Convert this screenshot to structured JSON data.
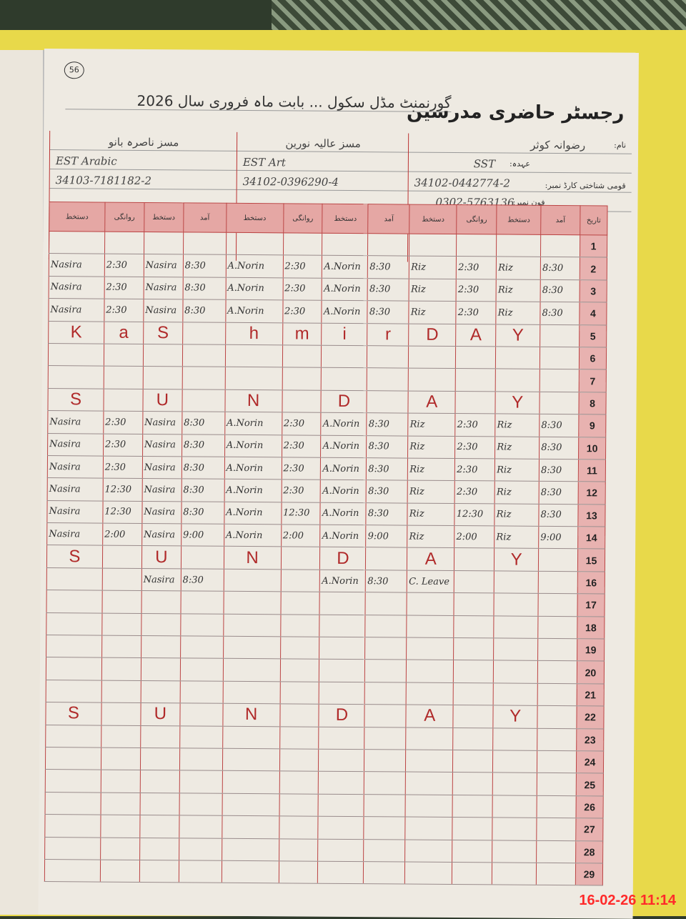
{
  "page_number": "56",
  "title": "رجسٹر حاضری مدرسین",
  "subtitle": "گورنمنٹ مڈل سکول ... بابت ماہ فروری سال 2026",
  "labels": {
    "name": "نام:",
    "designation": "عہدہ:",
    "cnic": "قومی شناختی کارڈ نمبر:",
    "phone": "فون نمبر:"
  },
  "teachers": [
    {
      "name": "مسز ناصرہ بانو",
      "designation": "EST Arabic",
      "cnic": "34103-7181182-2",
      "phone": ""
    },
    {
      "name": "مسز عالیہ نورین",
      "designation": "EST Art",
      "cnic": "34102-0396290-4",
      "phone": ""
    },
    {
      "name": "رضوانہ کوثر",
      "designation": "SST",
      "cnic": "34102-0442774-2",
      "phone": "0302-5763136"
    }
  ],
  "columns": [
    "دستخط",
    "روانگی",
    "دستخط",
    "آمد",
    "دستخط",
    "روانگی",
    "دستخط",
    "آمد",
    "دستخط",
    "روانگی",
    "دستخط",
    "آمد",
    "تاریخ"
  ],
  "rows": [
    {
      "date": "1",
      "cells": [
        "",
        "",
        "",
        "",
        "",
        "",
        "",
        "",
        "",
        "",
        "",
        ""
      ]
    },
    {
      "date": "2",
      "cells": [
        "Nasira",
        "2:30",
        "Nasira",
        "8:30",
        "A.Norin",
        "2:30",
        "A.Norin",
        "8:30",
        "Riz",
        "2:30",
        "Riz",
        "8:30"
      ]
    },
    {
      "date": "3",
      "cells": [
        "Nasira",
        "2:30",
        "Nasira",
        "8:30",
        "A.Norin",
        "2:30",
        "A.Norin",
        "8:30",
        "Riz",
        "2:30",
        "Riz",
        "8:30"
      ]
    },
    {
      "date": "4",
      "cells": [
        "Nasira",
        "2:30",
        "Nasira",
        "8:30",
        "A.Norin",
        "2:30",
        "A.Norin",
        "8:30",
        "Riz",
        "2:30",
        "Riz",
        "8:30"
      ]
    },
    {
      "date": "5",
      "letters": true,
      "cells": [
        "K",
        "a",
        "S",
        "",
        "h",
        "m",
        "i",
        "r",
        "D",
        "A",
        "Y",
        ""
      ]
    },
    {
      "date": "6",
      "cells": [
        "",
        "",
        "",
        "",
        "",
        "",
        "",
        "",
        "",
        "",
        "",
        ""
      ]
    },
    {
      "date": "7",
      "cells": [
        "",
        "",
        "",
        "",
        "",
        "",
        "",
        "",
        "",
        "",
        "",
        ""
      ]
    },
    {
      "date": "8",
      "letters": true,
      "cells": [
        "S",
        "",
        "U",
        "",
        "N",
        "",
        "D",
        "",
        "A",
        "",
        "Y",
        ""
      ]
    },
    {
      "date": "9",
      "cells": [
        "Nasira",
        "2:30",
        "Nasira",
        "8:30",
        "A.Norin",
        "2:30",
        "A.Norin",
        "8:30",
        "Riz",
        "2:30",
        "Riz",
        "8:30"
      ]
    },
    {
      "date": "10",
      "cells": [
        "Nasira",
        "2:30",
        "Nasira",
        "8:30",
        "A.Norin",
        "2:30",
        "A.Norin",
        "8:30",
        "Riz",
        "2:30",
        "Riz",
        "8:30"
      ]
    },
    {
      "date": "11",
      "cells": [
        "Nasira",
        "2:30",
        "Nasira",
        "8:30",
        "A.Norin",
        "2:30",
        "A.Norin",
        "8:30",
        "Riz",
        "2:30",
        "Riz",
        "8:30"
      ]
    },
    {
      "date": "12",
      "cells": [
        "Nasira",
        "12:30",
        "Nasira",
        "8:30",
        "A.Norin",
        "2:30",
        "A.Norin",
        "8:30",
        "Riz",
        "2:30",
        "Riz",
        "8:30"
      ]
    },
    {
      "date": "13",
      "cells": [
        "Nasira",
        "12:30",
        "Nasira",
        "8:30",
        "A.Norin",
        "12:30",
        "A.Norin",
        "8:30",
        "Riz",
        "12:30",
        "Riz",
        "8:30"
      ]
    },
    {
      "date": "14",
      "cells": [
        "Nasira",
        "2:00",
        "Nasira",
        "9:00",
        "A.Norin",
        "2:00",
        "A.Norin",
        "9:00",
        "Riz",
        "2:00",
        "Riz",
        "9:00"
      ]
    },
    {
      "date": "15",
      "letters": true,
      "cells": [
        "S",
        "",
        "U",
        "",
        "N",
        "",
        "D",
        "",
        "A",
        "",
        "Y",
        ""
      ]
    },
    {
      "date": "16",
      "cells": [
        "",
        "",
        "Nasira",
        "8:30",
        "",
        "",
        "A.Norin",
        "8:30",
        "C. Leave",
        "",
        "",
        ""
      ]
    },
    {
      "date": "17",
      "cells": [
        "",
        "",
        "",
        "",
        "",
        "",
        "",
        "",
        "",
        "",
        "",
        ""
      ]
    },
    {
      "date": "18",
      "cells": [
        "",
        "",
        "",
        "",
        "",
        "",
        "",
        "",
        "",
        "",
        "",
        ""
      ]
    },
    {
      "date": "19",
      "cells": [
        "",
        "",
        "",
        "",
        "",
        "",
        "",
        "",
        "",
        "",
        "",
        ""
      ]
    },
    {
      "date": "20",
      "cells": [
        "",
        "",
        "",
        "",
        "",
        "",
        "",
        "",
        "",
        "",
        "",
        ""
      ]
    },
    {
      "date": "21",
      "cells": [
        "",
        "",
        "",
        "",
        "",
        "",
        "",
        "",
        "",
        "",
        "",
        ""
      ]
    },
    {
      "date": "22",
      "letters": true,
      "cells": [
        "S",
        "",
        "U",
        "",
        "N",
        "",
        "D",
        "",
        "A",
        "",
        "Y",
        ""
      ]
    },
    {
      "date": "23",
      "cells": [
        "",
        "",
        "",
        "",
        "",
        "",
        "",
        "",
        "",
        "",
        "",
        ""
      ]
    },
    {
      "date": "24",
      "cells": [
        "",
        "",
        "",
        "",
        "",
        "",
        "",
        "",
        "",
        "",
        "",
        ""
      ]
    },
    {
      "date": "25",
      "cells": [
        "",
        "",
        "",
        "",
        "",
        "",
        "",
        "",
        "",
        "",
        "",
        ""
      ]
    },
    {
      "date": "26",
      "cells": [
        "",
        "",
        "",
        "",
        "",
        "",
        "",
        "",
        "",
        "",
        "",
        ""
      ]
    },
    {
      "date": "27",
      "cells": [
        "",
        "",
        "",
        "",
        "",
        "",
        "",
        "",
        "",
        "",
        "",
        ""
      ]
    },
    {
      "date": "28",
      "cells": [
        "",
        "",
        "",
        "",
        "",
        "",
        "",
        "",
        "",
        "",
        "",
        ""
      ]
    },
    {
      "date": "29",
      "cells": [
        "",
        "",
        "",
        "",
        "",
        "",
        "",
        "",
        "",
        "",
        "",
        ""
      ]
    }
  ],
  "photo_timestamp": "16-02-26 11:14",
  "colors": {
    "header_pink": "#e5a7a4",
    "ink_red": "#b02a2a",
    "folder_yellow": "#e8d94a",
    "stamp_red": "#ff2a2a"
  }
}
